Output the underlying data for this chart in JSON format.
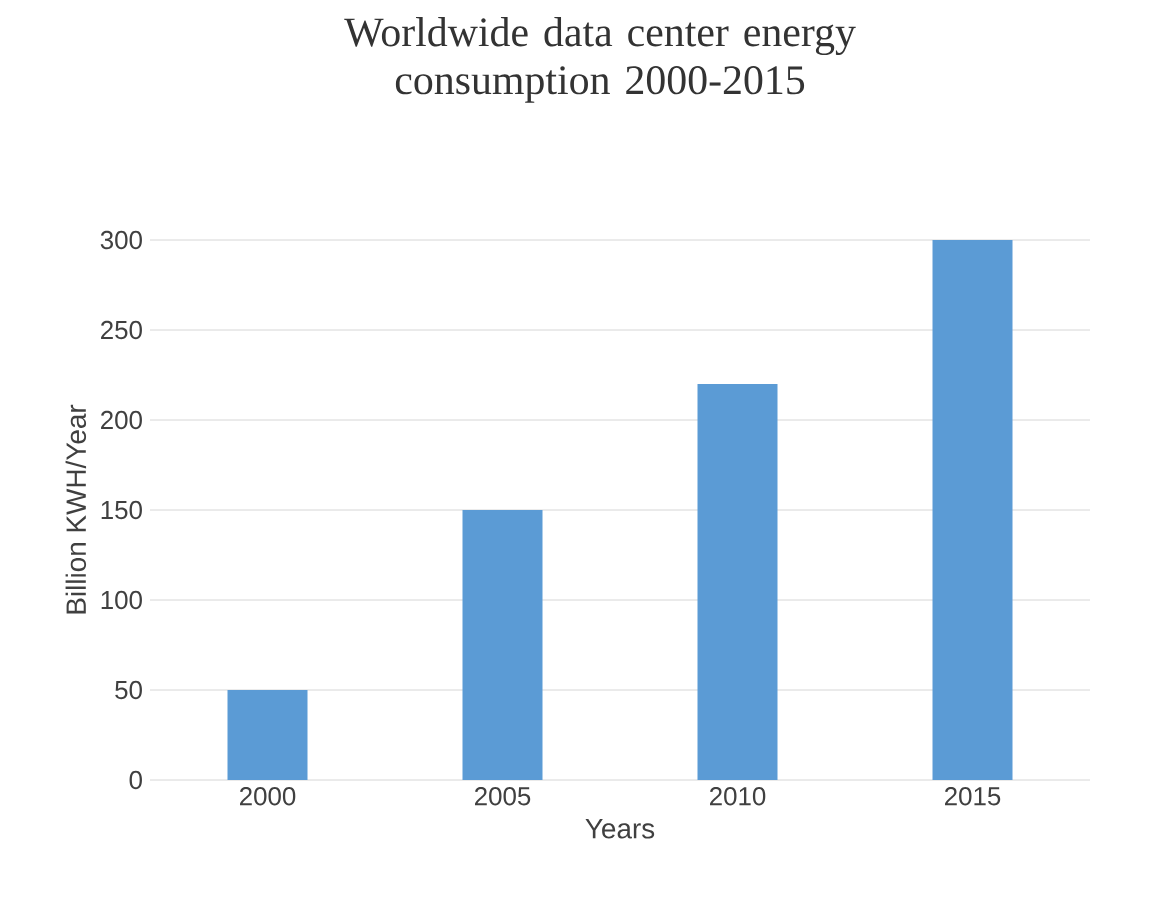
{
  "chart_data": {
    "type": "bar",
    "title": "Worldwide data center energy consumption 2000-2015",
    "xlabel": "Years",
    "ylabel": "Billion KWH/Year",
    "categories": [
      "2000",
      "2005",
      "2010",
      "2015"
    ],
    "values": [
      50,
      150,
      220,
      300
    ],
    "color": "#5b9bd5",
    "ylim": [
      0,
      300
    ],
    "yticks": [
      0,
      50,
      100,
      150,
      200,
      250,
      300
    ],
    "grid": "y"
  }
}
